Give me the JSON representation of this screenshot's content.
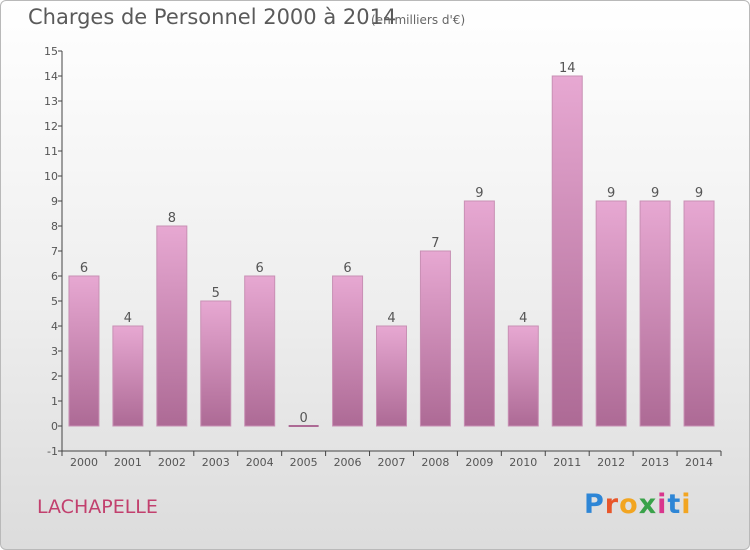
{
  "header": {
    "title": "Charges de Personnel 2000 à 2014",
    "subtitle": "(en milliers d'€)"
  },
  "footer": {
    "location": "LACHAPELLE"
  },
  "logo": {
    "text": "Proxiti",
    "colors": [
      "#2e86d6",
      "#e8562a",
      "#f2a521",
      "#3aa24a",
      "#d9368d",
      "#2e86d6",
      "#f2a521"
    ]
  },
  "colors": {
    "bar_top": "#e7a8d2",
    "bar_bottom": "#ad6a95",
    "bar_edge": "#c890b4",
    "axis": "#444444",
    "text": "#555555"
  },
  "chart_data": {
    "type": "bar",
    "categories": [
      "2000",
      "2001",
      "2002",
      "2003",
      "2004",
      "2005",
      "2006",
      "2007",
      "2008",
      "2009",
      "2010",
      "2011",
      "2012",
      "2013",
      "2014"
    ],
    "values": [
      6,
      4,
      8,
      5,
      6,
      0,
      6,
      4,
      7,
      9,
      4,
      14,
      9,
      9,
      9
    ],
    "ylim": [
      -1,
      15
    ],
    "yticks": [
      "-1",
      "0",
      "1",
      "2",
      "3",
      "4",
      "5",
      "6",
      "7",
      "8",
      "9",
      "10",
      "11",
      "12",
      "13",
      "14",
      "15"
    ],
    "data_labels": [
      "6",
      "4",
      "8",
      "5",
      "6",
      "0",
      "6",
      "4",
      "7",
      "9",
      "4",
      "14",
      "9",
      "9",
      "9"
    ],
    "grid": false,
    "legend": "none"
  }
}
